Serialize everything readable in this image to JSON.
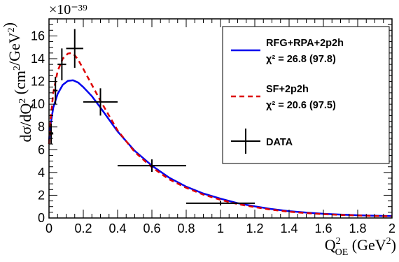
{
  "chart_data": {
    "type": "line",
    "exponent_label": "×10⁻³⁹",
    "xlabel": "Q²_OE (GeV²)",
    "ylabel": "dσ/dQ² (cm²/GeV²)",
    "xlim": [
      0,
      2
    ],
    "ylim": [
      0,
      17.5
    ],
    "x_ticks": [
      "0",
      "0.2",
      "0.4",
      "0.6",
      "0.8",
      "1",
      "1.2",
      "1.4",
      "1.6",
      "1.8",
      "2"
    ],
    "y_ticks": [
      "0",
      "2",
      "4",
      "6",
      "8",
      "10",
      "12",
      "14",
      "16"
    ],
    "legend_position": "top-right",
    "series": [
      {
        "name": "RFG+RPA+2p2h",
        "chi2": "χ² = 26.8 (97.8)",
        "color": "#0000ee",
        "style": "solid",
        "x": [
          0.0,
          0.01,
          0.025,
          0.05,
          0.08,
          0.11,
          0.14,
          0.17,
          0.2,
          0.25,
          0.3,
          0.4,
          0.5,
          0.6,
          0.7,
          0.8,
          0.9,
          1.0,
          1.1,
          1.2,
          1.3,
          1.4,
          1.5,
          1.6,
          1.7,
          1.8,
          1.9,
          2.0
        ],
        "values": [
          6.8,
          8.3,
          9.7,
          10.9,
          11.7,
          12.05,
          12.1,
          11.9,
          11.5,
          10.7,
          9.7,
          7.6,
          5.9,
          4.6,
          3.55,
          2.75,
          2.15,
          1.7,
          1.3,
          1.02,
          0.78,
          0.6,
          0.47,
          0.37,
          0.3,
          0.24,
          0.2,
          0.17
        ]
      },
      {
        "name": "SF+2p2h",
        "chi2": "χ² = 20.6 (97.5)",
        "color": "#dd0000",
        "style": "dashed",
        "x": [
          0.0,
          0.01,
          0.025,
          0.05,
          0.08,
          0.11,
          0.13,
          0.15,
          0.17,
          0.2,
          0.25,
          0.3,
          0.4,
          0.5,
          0.6,
          0.7,
          0.8,
          0.9,
          1.0,
          1.1,
          1.2,
          1.3,
          1.4,
          1.5,
          1.6,
          1.7,
          1.8,
          1.9,
          2.0
        ],
        "values": [
          6.5,
          8.8,
          11.0,
          12.9,
          14.0,
          14.45,
          14.5,
          14.3,
          13.9,
          13.1,
          11.7,
          10.3,
          7.7,
          5.8,
          4.45,
          3.4,
          2.65,
          2.05,
          1.6,
          1.22,
          0.95,
          0.72,
          0.55,
          0.43,
          0.34,
          0.27,
          0.22,
          0.18,
          0.15
        ]
      }
    ],
    "data_points": {
      "name": "DATA",
      "color": "#000000",
      "points": [
        {
          "x": 0.0125,
          "y": 7.4,
          "xerr": 0.0125,
          "yerr": 0.9
        },
        {
          "x": 0.0375,
          "y": 11.2,
          "xerr": 0.0125,
          "yerr": 1.2
        },
        {
          "x": 0.075,
          "y": 13.5,
          "xerr": 0.025,
          "yerr": 1.4
        },
        {
          "x": 0.15,
          "y": 14.9,
          "xerr": 0.05,
          "yerr": 1.7
        },
        {
          "x": 0.3,
          "y": 10.2,
          "xerr": 0.1,
          "yerr": 1.2
        },
        {
          "x": 0.6,
          "y": 4.6,
          "xerr": 0.2,
          "yerr": 0.55
        },
        {
          "x": 1.0,
          "y": 1.3,
          "xerr": 0.2,
          "yerr": 0.2
        }
      ]
    }
  }
}
